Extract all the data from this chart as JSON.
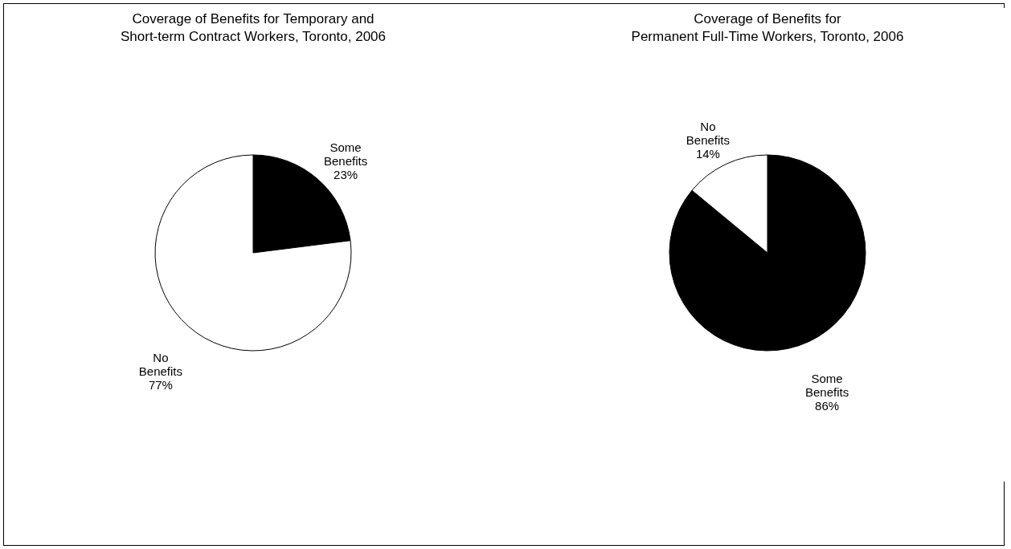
{
  "chart_data": [
    {
      "type": "pie",
      "title": "Coverage of Benefits for Temporary and\nShort-term Contract Workers, Toronto, 2006",
      "categories": [
        "Some Benefits",
        "No Benefits"
      ],
      "values": [
        23,
        77
      ],
      "value_labels": [
        "23%",
        "77%"
      ],
      "colors": [
        "#000000",
        "#ffffff"
      ],
      "legend": false
    },
    {
      "type": "pie",
      "title": "Coverage of Benefits for\nPermanent Full-Time Workers, Toronto, 2006",
      "categories": [
        "Some Benefits",
        "No Benefits"
      ],
      "values": [
        86,
        14
      ],
      "value_labels": [
        "86%",
        "14%"
      ],
      "colors": [
        "#000000",
        "#ffffff"
      ],
      "legend": false
    }
  ]
}
